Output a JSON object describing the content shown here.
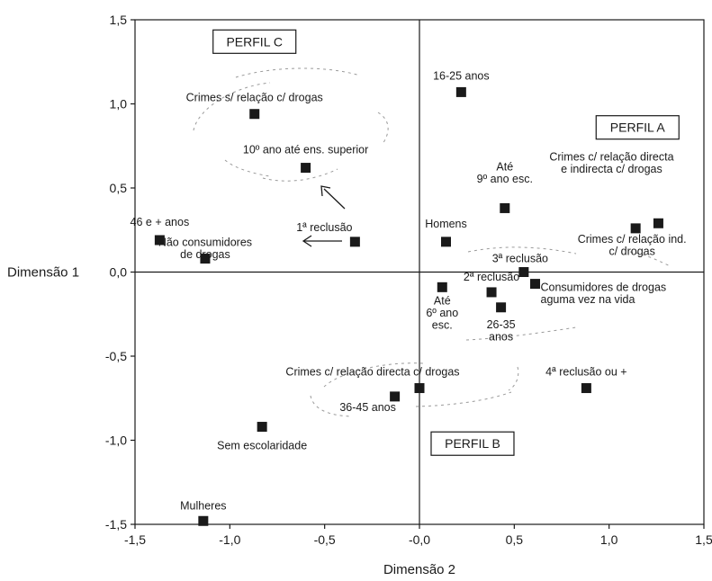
{
  "chart_data": {
    "type": "scatter",
    "xlabel": "Dimensão 2",
    "ylabel": "Dimensão 1",
    "xlim": [
      -1.5,
      1.5
    ],
    "ylim": [
      -1.5,
      1.5
    ],
    "x_ticks": [
      "-1,5",
      "-1,0",
      "-0,5",
      "-0,0",
      "0,5",
      "1,0",
      "1,5"
    ],
    "y_ticks": [
      "1,5",
      "1,0",
      "0,5",
      "0,0",
      "-0,5",
      "-1,0",
      "-1,5"
    ],
    "grid": false,
    "points": [
      {
        "x": 0.22,
        "y": 1.07,
        "label": [
          "16-25 anos"
        ]
      },
      {
        "x": -0.87,
        "y": 0.94,
        "label": [
          "Crimes s/ relação c/ drogas"
        ]
      },
      {
        "x": -0.6,
        "y": 0.62,
        "label": [
          "10º ano até ens. superior"
        ]
      },
      {
        "x": 0.45,
        "y": 0.38,
        "label": [
          "Até",
          "9º ano esc."
        ]
      },
      {
        "x": 1.26,
        "y": 0.29,
        "label": [
          "Crimes c/ relação directa",
          "e indirecta c/ drogas"
        ]
      },
      {
        "x": 1.14,
        "y": 0.26,
        "label": [
          "Crimes c/ relação ind.",
          "c/ drogas"
        ]
      },
      {
        "x": -1.37,
        "y": 0.19,
        "label": [
          "46 e + anos"
        ]
      },
      {
        "x": -0.34,
        "y": 0.18,
        "label": [
          "1ª reclusão"
        ]
      },
      {
        "x": 0.14,
        "y": 0.18,
        "label": [
          "Homens"
        ]
      },
      {
        "x": -1.13,
        "y": 0.08,
        "label": [
          "Não consumidores",
          "de drogas"
        ]
      },
      {
        "x": 0.55,
        "y": 0.0,
        "label": [
          "3ª reclusão"
        ]
      },
      {
        "x": 0.61,
        "y": -0.07,
        "label": [
          "Consumidores de drogas",
          "aguma vez na vida"
        ]
      },
      {
        "x": 0.12,
        "y": -0.09,
        "label": [
          "Até",
          "6º ano",
          "esc."
        ]
      },
      {
        "x": 0.38,
        "y": -0.12,
        "label": [
          "2ª reclusão"
        ]
      },
      {
        "x": 0.43,
        "y": -0.21,
        "label": [
          "26-35",
          "anos"
        ]
      },
      {
        "x": -0.0,
        "y": -0.69,
        "label": [
          "Crimes c/ relação directa c/ drogas"
        ]
      },
      {
        "x": 0.88,
        "y": -0.69,
        "label": [
          "4ª reclusão ou +"
        ]
      },
      {
        "x": -0.13,
        "y": -0.74,
        "label": [
          "36-45 anos"
        ]
      },
      {
        "x": -0.83,
        "y": -0.92,
        "label": [
          "Sem escolaridade"
        ]
      },
      {
        "x": -1.14,
        "y": -1.48,
        "label": [
          "Mulheres"
        ]
      }
    ],
    "profiles": [
      {
        "label": "PERFIL C"
      },
      {
        "label": "PERFIL A"
      },
      {
        "label": "PERFIL B"
      }
    ]
  }
}
